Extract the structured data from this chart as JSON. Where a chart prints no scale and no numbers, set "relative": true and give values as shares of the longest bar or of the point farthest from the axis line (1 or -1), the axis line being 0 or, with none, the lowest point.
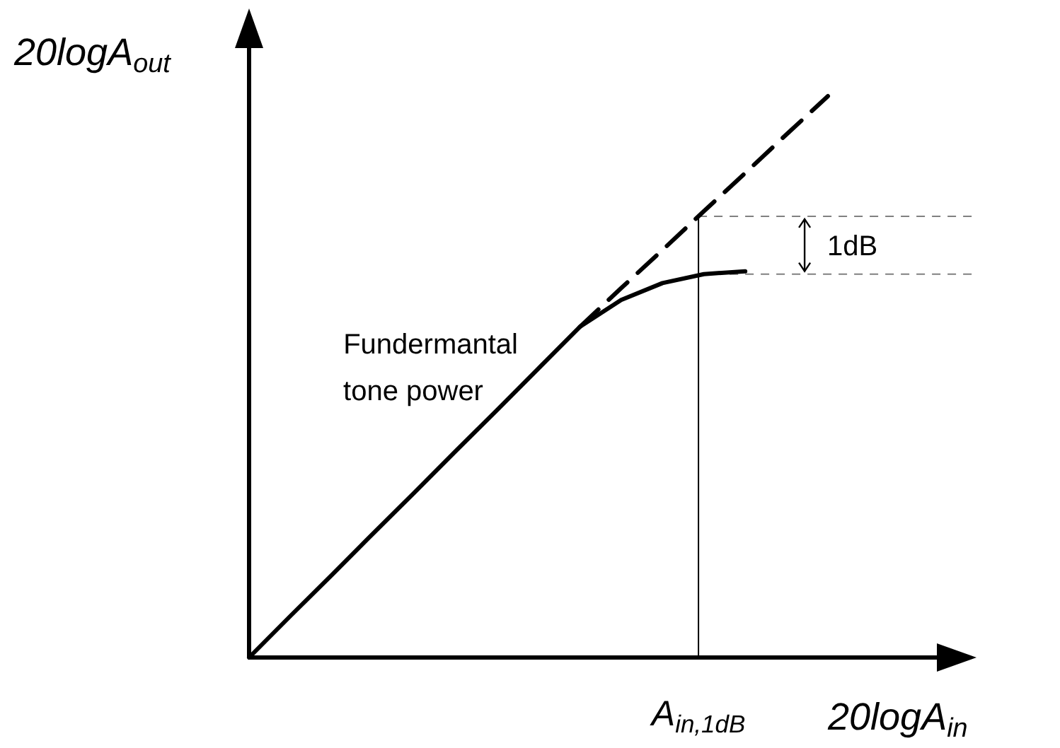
{
  "chart_data": {
    "type": "line",
    "relative": true,
    "xlabel": "20logA$_{in}$",
    "ylabel": "20logA$_{out}$",
    "categories": [
      null,
      null,
      null,
      null,
      null,
      null,
      null,
      null,
      null,
      null,
      null,
      null,
      null,
      null,
      null
    ],
    "series": [
      {
        "name": "Fundermantal tone power",
        "color": "#000000",
        "line_style": "solid",
        "values": [
          0,
          0.074,
          0.147,
          0.221,
          0.294,
          0.368,
          0.441,
          0.515,
          0.589,
          0.637,
          0.667,
          0.683,
          0.688,
          null,
          null
        ]
      },
      {
        "color": "#000000",
        "line_style": "dashed",
        "values": [
          null,
          null,
          null,
          null,
          null,
          null,
          null,
          null,
          0.589,
          0.658,
          0.726,
          0.795,
          0.863,
          0.932,
          1
        ]
      }
    ],
    "ref_lines": [
      {
        "axis": "y",
        "value": 0.786,
        "color": "#808080",
        "line_style": "dashed"
      },
      {
        "axis": "y",
        "value": 0.683,
        "color": "#808080",
        "line_style": "dashed"
      }
    ],
    "annotations": [
      "1dB",
      {
        "text": "A$_{in,1dB}$",
        "y": 0.786
      }
    ]
  }
}
